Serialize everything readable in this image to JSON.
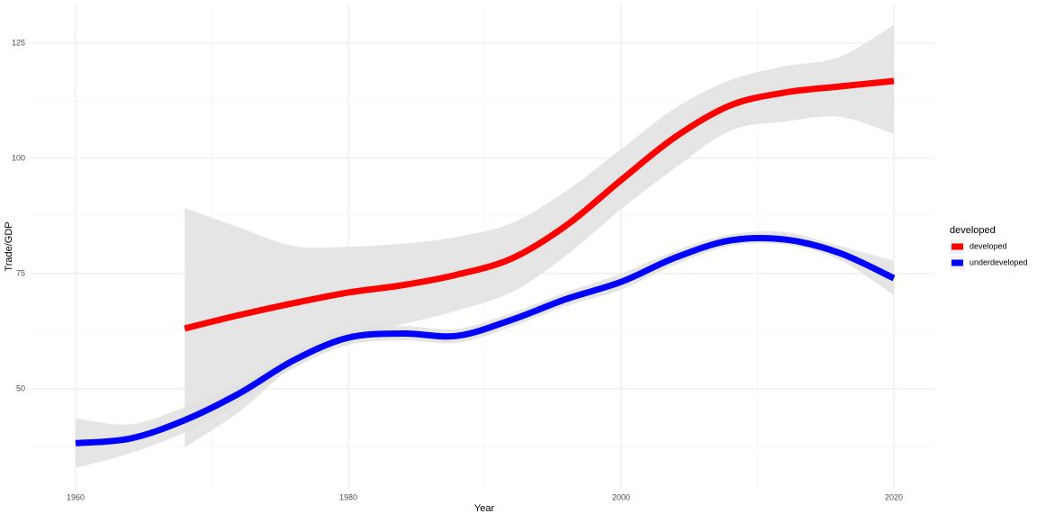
{
  "chart_data": {
    "type": "line",
    "x_label": "Year",
    "y_label": "Trade/GDP",
    "x": [
      1960,
      1964,
      1968,
      1972,
      1976,
      1980,
      1984,
      1988,
      1992,
      1996,
      2000,
      2004,
      2008,
      2012,
      2016,
      2020
    ],
    "series": [
      {
        "name": "developed",
        "color": "#ff0000",
        "values": [
          null,
          null,
          63.1,
          66,
          68.6,
          70.9,
          72.5,
          74.8,
          78.3,
          85.5,
          95.3,
          104.7,
          111.5,
          114.3,
          115.6,
          116.8
        ],
        "lower": [
          null,
          null,
          37.3,
          45,
          55,
          61,
          64,
          67,
          71,
          79,
          89,
          98,
          106,
          108,
          109,
          105.3
        ],
        "upper": [
          null,
          null,
          89.3,
          85,
          81,
          80.8,
          81.5,
          83,
          86,
          93,
          102,
          111,
          117,
          120,
          122,
          129
        ]
      },
      {
        "name": "underdeveloped",
        "color": "#0000ff",
        "values": [
          38.2,
          39.2,
          43.2,
          49,
          56.2,
          61.1,
          62,
          61.5,
          65,
          69.5,
          73.2,
          78.5,
          82.2,
          82.4,
          79.5,
          74
        ],
        "lower": [
          32.8,
          36,
          40.5,
          47,
          54.5,
          59.5,
          60.5,
          60,
          63.5,
          68,
          71.5,
          77,
          81,
          81.3,
          78,
          70.3
        ],
        "upper": [
          43.6,
          42.3,
          46,
          51,
          57.9,
          62.8,
          63.6,
          63,
          66.5,
          71,
          75,
          80,
          83.5,
          84,
          81,
          77.8
        ]
      }
    ],
    "band_color": "#e0e0e0",
    "legend_title": "developed",
    "legend": "right",
    "xlim": [
      1956.57,
      2022.97
    ],
    "xticks": [
      1960,
      1980,
      2000,
      2020
    ],
    "xminor": [
      1970,
      1990,
      2010
    ],
    "ylim": [
      28.3,
      133.4
    ],
    "yticks": [
      50,
      75,
      100,
      125
    ],
    "yminor": [
      37.5,
      62.5,
      87.5,
      112.5
    ],
    "grid": true
  }
}
